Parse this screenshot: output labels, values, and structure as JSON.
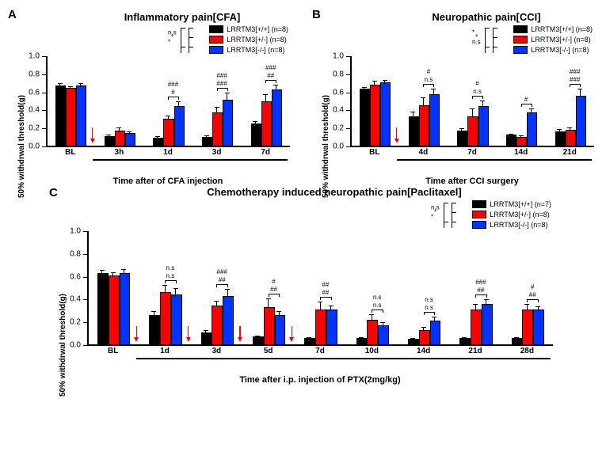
{
  "colors": {
    "wt": "#000000",
    "het": "#ff0000",
    "ko": "#0033ff",
    "arrow": "#ff0000",
    "bg": "#ffffff",
    "axis": "#000000"
  },
  "legend_labels": {
    "wt_prefix": "LRRTM3[+/+] (n=",
    "het_prefix": "LRRTM3[+/-] (n=",
    "ko_prefix": "LRRTM3[-/-] (n=",
    "suffix": ")"
  },
  "ylabel": "50% withdrwal threshold(g)",
  "panelA": {
    "label": "A",
    "title": "Inflammatory pain[CFA]",
    "xlabel": "Time after of CFA injection",
    "n": {
      "wt": 8,
      "het": 8,
      "ko": 8
    },
    "ymax": 1.0,
    "ytick": 0.2,
    "categories": [
      "BL",
      "3h",
      "1d",
      "3d",
      "7d"
    ],
    "wt": [
      0.66,
      0.1,
      0.08,
      0.09,
      0.24
    ],
    "het": [
      0.63,
      0.16,
      0.29,
      0.36,
      0.48
    ],
    "ko": [
      0.66,
      0.13,
      0.43,
      0.5,
      0.61
    ],
    "wt_err": [
      0.04,
      0.03,
      0.03,
      0.03,
      0.04
    ],
    "het_err": [
      0.04,
      0.05,
      0.05,
      0.08,
      0.1
    ],
    "ko_err": [
      0.04,
      0.04,
      0.07,
      0.1,
      0.07
    ],
    "sig_het": [
      "",
      "",
      "#",
      "###",
      "##"
    ],
    "sig_ko": [
      "",
      "",
      "###",
      "###",
      "###"
    ],
    "arrow_after": 0,
    "overall_sig": {
      "wt_het": "*",
      "wt_ko": "*",
      "het_ko": "n.s"
    }
  },
  "panelB": {
    "label": "B",
    "title": "Neuropathic pain[CCI]",
    "xlabel": "Time after CCI surgery",
    "n": {
      "wt": 8,
      "het": 8,
      "ko": 8
    },
    "ymax": 1.0,
    "ytick": 0.2,
    "categories": [
      "BL",
      "4d",
      "7d",
      "14d",
      "21d"
    ],
    "wt": [
      0.62,
      0.32,
      0.16,
      0.11,
      0.15
    ],
    "het": [
      0.67,
      0.44,
      0.32,
      0.09,
      0.17
    ],
    "ko": [
      0.69,
      0.56,
      0.43,
      0.36,
      0.54
    ],
    "wt_err": [
      0.04,
      0.07,
      0.04,
      0.03,
      0.04
    ],
    "het_err": [
      0.06,
      0.1,
      0.1,
      0.03,
      0.04
    ],
    "ko_err": [
      0.05,
      0.08,
      0.08,
      0.06,
      0.1
    ],
    "sig_het": [
      "",
      "n.s",
      "n.s",
      "#",
      ""
    ],
    "sig_ko": [
      "",
      "#",
      "#",
      "",
      "###"
    ],
    "sig_het_ko": [
      "",
      "",
      "",
      "",
      "###"
    ],
    "arrow_after": 0,
    "overall_sig": {
      "wt_het": "n.s",
      "wt_ko": "*",
      "het_ko": "*"
    }
  },
  "panelC": {
    "label": "C",
    "title": "Chemotherapy induced neuropathic pain[Paclitaxel]",
    "xlabel": "Time after i.p. injection of PTX(2mg/kg)",
    "n": {
      "wt": 7,
      "het": 8,
      "ko": 8
    },
    "ymax": 1.0,
    "ytick": 0.2,
    "categories": [
      "BL",
      "1d",
      "3d",
      "5d",
      "7d",
      "10d",
      "14d",
      "21d",
      "28d"
    ],
    "wt": [
      0.62,
      0.25,
      0.1,
      0.06,
      0.05,
      0.05,
      0.04,
      0.05,
      0.05
    ],
    "het": [
      0.6,
      0.45,
      0.33,
      0.32,
      0.3,
      0.21,
      0.12,
      0.3,
      0.3
    ],
    "ko": [
      0.62,
      0.43,
      0.42,
      0.25,
      0.3,
      0.16,
      0.2,
      0.35,
      0.3
    ],
    "wt_err": [
      0.04,
      0.05,
      0.03,
      0.02,
      0.02,
      0.02,
      0.02,
      0.02,
      0.02
    ],
    "het_err": [
      0.04,
      0.08,
      0.06,
      0.09,
      0.08,
      0.06,
      0.04,
      0.06,
      0.06
    ],
    "ko_err": [
      0.05,
      0.07,
      0.07,
      0.05,
      0.05,
      0.04,
      0.05,
      0.05,
      0.04
    ],
    "sig_het": [
      "",
      "n.s",
      "##",
      "##",
      "##",
      "n.s",
      "n.s",
      "##",
      "##"
    ],
    "sig_ko": [
      "",
      "n.s",
      "###",
      "#",
      "##",
      "n.s",
      "n.s",
      "###",
      "#"
    ],
    "arrows_after": [
      0,
      1,
      2,
      3
    ],
    "overall_sig": {
      "wt_het": "*",
      "wt_ko": "*",
      "het_ko": "n.s"
    }
  }
}
